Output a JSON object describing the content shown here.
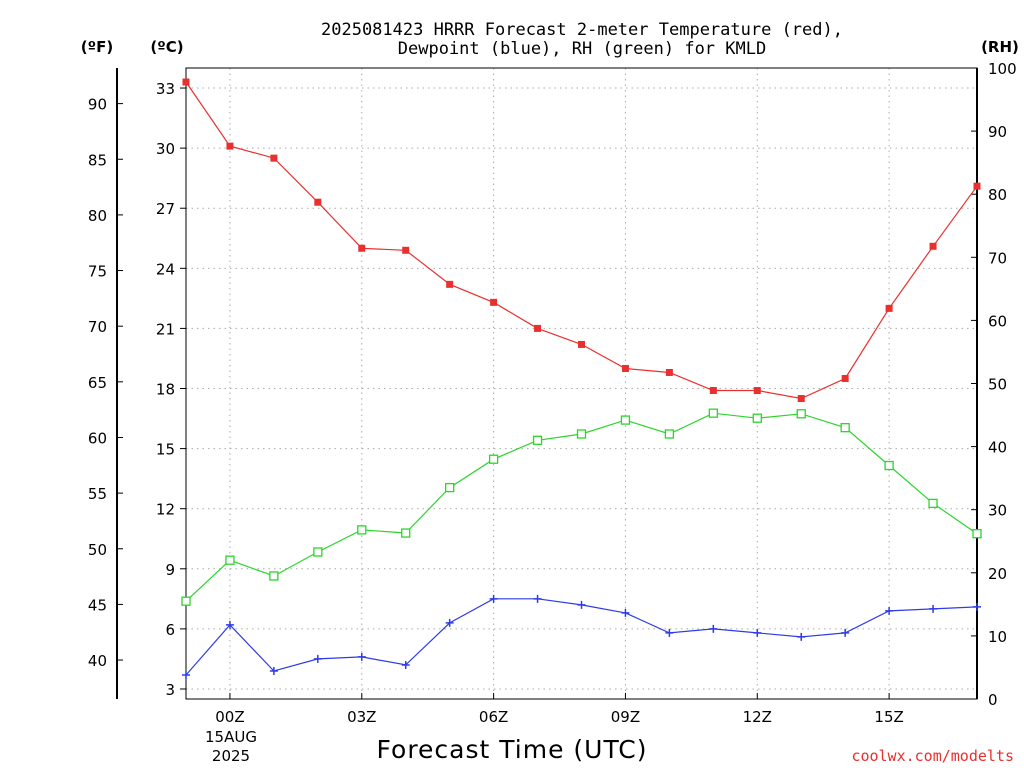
{
  "chart_data": {
    "type": "line",
    "title": [
      "2025081423 HRRR Forecast 2-meter Temperature (red),",
      "Dewpoint (blue), RH (green) for KMLD"
    ],
    "xlabel": "Forecast Time (UTC)",
    "credit": "coolwx.com/modelts",
    "units": {
      "fahrenheit": "(ºF)",
      "celsius": "(ºC)",
      "rh": "(RH)"
    },
    "date_label": [
      "15AUG",
      "2025"
    ],
    "x_hours": [
      -1,
      0,
      1,
      2,
      3,
      4,
      5,
      6,
      7,
      8,
      9,
      10,
      11,
      12,
      13,
      14,
      15,
      16,
      17
    ],
    "x_ticks": [
      {
        "hour": 0,
        "label": "00Z"
      },
      {
        "hour": 3,
        "label": "03Z"
      },
      {
        "hour": 6,
        "label": "06Z"
      },
      {
        "hour": 9,
        "label": "09Z"
      },
      {
        "hour": 12,
        "label": "12Z"
      },
      {
        "hour": 15,
        "label": "15Z"
      }
    ],
    "xlim": [
      -1,
      17
    ],
    "celsius_axis": {
      "ylim": [
        2.5,
        34.0
      ],
      "ticks": [
        3,
        6,
        9,
        12,
        15,
        18,
        21,
        24,
        27,
        30,
        33
      ]
    },
    "fahrenheit_axis": {
      "ticks": [
        40,
        45,
        50,
        55,
        60,
        65,
        70,
        75,
        80,
        85,
        90
      ]
    },
    "rh_axis": {
      "ylim": [
        0,
        100
      ],
      "ticks": [
        0,
        10,
        20,
        30,
        40,
        50,
        60,
        70,
        80,
        90,
        100
      ]
    },
    "grid": true,
    "series": [
      {
        "name": "Temperature",
        "axis": "celsius",
        "color": "#e8302e",
        "marker": "filled-square",
        "values": [
          33.3,
          30.1,
          29.5,
          27.3,
          25.0,
          24.9,
          23.2,
          22.3,
          21.0,
          20.2,
          19.0,
          18.8,
          17.9,
          17.9,
          17.5,
          18.5,
          22.0,
          25.1,
          28.1
        ]
      },
      {
        "name": "Dewpoint",
        "axis": "celsius",
        "color": "#2e3be8",
        "marker": "plus",
        "values": [
          3.7,
          6.2,
          3.9,
          4.5,
          4.6,
          4.2,
          6.3,
          7.5,
          7.5,
          7.2,
          6.8,
          5.8,
          6.0,
          5.8,
          5.6,
          5.8,
          6.9,
          7.0,
          7.1
        ]
      },
      {
        "name": "RH",
        "axis": "rh",
        "color": "#2ad62a",
        "marker": "open-square",
        "values": [
          15.5,
          22.0,
          19.5,
          23.3,
          26.8,
          26.3,
          33.5,
          38.0,
          41.0,
          42.0,
          44.2,
          42.0,
          45.3,
          44.5,
          45.2,
          43.0,
          37.0,
          31.0,
          26.2
        ]
      }
    ]
  }
}
